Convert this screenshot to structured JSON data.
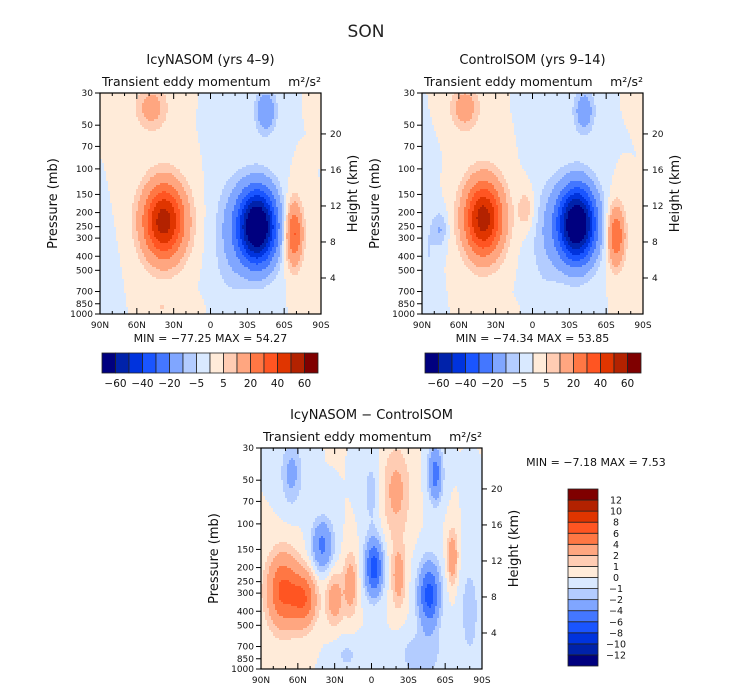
{
  "figure": {
    "title": "SON"
  },
  "chart_data": [
    {
      "type": "heatmap",
      "id": "icy",
      "title": "IcyNASOM (yrs 4–9)",
      "subtitle_left": "Transient eddy momentum",
      "subtitle_units": "m²/s²",
      "xlabel": "",
      "ylabel": "Pressure (mb)",
      "ylabel_right": "Height (km)",
      "x_ticks": [
        "90N",
        "60N",
        "30N",
        "0",
        "30S",
        "60S",
        "90S"
      ],
      "x_tick_values": [
        90,
        60,
        30,
        0,
        -30,
        -60,
        -90
      ],
      "xlim": [
        90,
        -90
      ],
      "y_ticks": [
        30,
        50,
        70,
        100,
        150,
        200,
        250,
        300,
        400,
        500,
        700,
        850,
        1000
      ],
      "ylim": [
        1000,
        30
      ],
      "y_scale": "log",
      "y_right_ticks": [
        4,
        8,
        12,
        16,
        20
      ],
      "stats": "MIN =  −77.25   MAX =   54.27",
      "min": -77.25,
      "max": 54.27,
      "colorbar": {
        "orientation": "horizontal",
        "levels": [
          -70,
          -60,
          -50,
          -40,
          -30,
          -20,
          -10,
          -5,
          0,
          5,
          10,
          20,
          30,
          40,
          50,
          60,
          70
        ],
        "labels": [
          "−60",
          "−40",
          "−20",
          "−5",
          "5",
          "20",
          "40",
          "60"
        ],
        "label_values": [
          -60,
          -40,
          -20,
          -5,
          5,
          20,
          40,
          60
        ]
      },
      "features": [
        {
          "lat": 38,
          "p": 230,
          "amp": 56,
          "wlat": 12,
          "wlogp": 0.42
        },
        {
          "lat": 48,
          "p": 38,
          "amp": 14,
          "wlat": 9,
          "wlogp": 0.25
        },
        {
          "lat": 40,
          "p": 900,
          "amp": 5,
          "wlat": 6,
          "wlogp": 0.12
        },
        {
          "lat": 15,
          "p": 900,
          "amp": 4,
          "wlat": 5,
          "wlogp": 0.1
        },
        {
          "lat": -38,
          "p": 250,
          "amp": -80,
          "wlat": 11,
          "wlogp": 0.42
        },
        {
          "lat": -45,
          "p": 40,
          "amp": -18,
          "wlat": 6,
          "wlogp": 0.25
        },
        {
          "lat": -15,
          "p": 300,
          "amp": -8,
          "wlat": 10,
          "wlogp": 0.7
        },
        {
          "lat": -68,
          "p": 280,
          "amp": 32,
          "wlat": 5,
          "wlogp": 0.35
        },
        {
          "lat": 85,
          "p": 700,
          "amp": -5,
          "wlat": 5,
          "wlogp": 0.5
        }
      ]
    },
    {
      "type": "heatmap",
      "id": "control",
      "title": "ControlSOM (yrs 9–14)",
      "subtitle_left": "Transient eddy momentum",
      "subtitle_units": "m²/s²",
      "xlabel": "",
      "ylabel": "Pressure (mb)",
      "ylabel_right": "Height (km)",
      "x_ticks": [
        "90N",
        "60N",
        "30N",
        "0",
        "30S",
        "60S",
        "90S"
      ],
      "x_tick_values": [
        90,
        60,
        30,
        0,
        -30,
        -60,
        -90
      ],
      "xlim": [
        90,
        -90
      ],
      "y_ticks": [
        30,
        50,
        70,
        100,
        150,
        200,
        250,
        300,
        400,
        500,
        700,
        850,
        1000
      ],
      "ylim": [
        1000,
        30
      ],
      "y_scale": "log",
      "y_right_ticks": [
        4,
        8,
        12,
        16,
        20
      ],
      "stats": "MIN =  −74.34   MAX =   53.85",
      "min": -74.34,
      "max": 53.85,
      "colorbar": {
        "orientation": "horizontal",
        "levels": [
          -70,
          -60,
          -50,
          -40,
          -30,
          -20,
          -10,
          -5,
          0,
          5,
          10,
          20,
          30,
          40,
          50,
          60,
          70
        ],
        "labels": [
          "−60",
          "−40",
          "−20",
          "−5",
          "5",
          "20",
          "40",
          "60"
        ],
        "label_values": [
          -60,
          -40,
          -20,
          -5,
          5,
          20,
          40,
          60
        ]
      },
      "features": [
        {
          "lat": 40,
          "p": 220,
          "amp": 56,
          "wlat": 11,
          "wlogp": 0.42
        },
        {
          "lat": 55,
          "p": 38,
          "amp": 15,
          "wlat": 8,
          "wlogp": 0.25
        },
        {
          "lat": 5,
          "p": 190,
          "amp": 9,
          "wlat": 5,
          "wlogp": 0.25
        },
        {
          "lat": 20,
          "p": 930,
          "amp": 5,
          "wlat": 4,
          "wlogp": 0.08
        },
        {
          "lat": -36,
          "p": 240,
          "amp": -78,
          "wlat": 11,
          "wlogp": 0.42
        },
        {
          "lat": -42,
          "p": 40,
          "amp": -16,
          "wlat": 6,
          "wlogp": 0.25
        },
        {
          "lat": -10,
          "p": 300,
          "amp": -7,
          "wlat": 10,
          "wlogp": 0.7
        },
        {
          "lat": -68,
          "p": 290,
          "amp": 30,
          "wlat": 5,
          "wlogp": 0.33
        },
        {
          "lat": 75,
          "p": 260,
          "amp": -10,
          "wlat": 4,
          "wlogp": 0.2
        },
        {
          "lat": 85,
          "p": 400,
          "amp": -5,
          "wlat": 5,
          "wlogp": 0.7
        }
      ]
    },
    {
      "type": "heatmap",
      "id": "diff",
      "title": "IcyNASOM − ControlSOM",
      "subtitle_left": "Transient eddy momentum",
      "subtitle_units": "m²/s²",
      "xlabel": "",
      "ylabel": "Pressure (mb)",
      "ylabel_right": "Height (km)",
      "x_ticks": [
        "90N",
        "60N",
        "30N",
        "0",
        "30S",
        "60S",
        "90S"
      ],
      "x_tick_values": [
        90,
        60,
        30,
        0,
        -30,
        -60,
        -90
      ],
      "xlim": [
        90,
        -90
      ],
      "y_ticks": [
        30,
        50,
        70,
        100,
        150,
        200,
        250,
        300,
        400,
        500,
        700,
        850,
        1000
      ],
      "ylim": [
        1000,
        30
      ],
      "y_scale": "log",
      "y_right_ticks": [
        4,
        8,
        12,
        16,
        20
      ],
      "stats": "MIN =   −7.18   MAX =    7.53",
      "min": -7.18,
      "max": 7.53,
      "colorbar": {
        "orientation": "vertical",
        "levels": [
          -14,
          -12,
          -10,
          -8,
          -6,
          -4,
          -2,
          -1,
          0,
          1,
          2,
          4,
          6,
          8,
          10,
          12,
          14
        ],
        "labels": [
          "−12",
          "−10",
          "−8",
          "−6",
          "−4",
          "−2",
          "−1",
          "0",
          "1",
          "2",
          "4",
          "6",
          "8",
          "10",
          "12"
        ],
        "label_values": [
          -12,
          -10,
          -8,
          -6,
          -4,
          -2,
          -1,
          0,
          1,
          2,
          4,
          6,
          8,
          10,
          12
        ]
      },
      "features": [
        {
          "lat": 72,
          "p": 290,
          "amp": 6.5,
          "wlat": 9,
          "wlogp": 0.4
        },
        {
          "lat": 55,
          "p": 330,
          "amp": 5.5,
          "wlat": 7,
          "wlogp": 0.3
        },
        {
          "lat": 30,
          "p": 330,
          "amp": 3,
          "wlat": 5,
          "wlogp": 0.3
        },
        {
          "lat": 17,
          "p": 260,
          "amp": 3,
          "wlat": 4,
          "wlogp": 0.35
        },
        {
          "lat": 40,
          "p": 140,
          "amp": -4.5,
          "wlat": 6,
          "wlogp": 0.28
        },
        {
          "lat": 65,
          "p": 45,
          "amp": -2.5,
          "wlat": 6,
          "wlogp": 0.35
        },
        {
          "lat": -2,
          "p": 200,
          "amp": -7.2,
          "wlat": 5,
          "wlogp": 0.3
        },
        {
          "lat": 0,
          "p": 60,
          "amp": -1.5,
          "wlat": 5,
          "wlogp": 0.4
        },
        {
          "lat": -22,
          "p": 230,
          "amp": 3,
          "wlat": 4,
          "wlogp": 0.35
        },
        {
          "lat": -20,
          "p": 60,
          "amp": 2.5,
          "wlat": 8,
          "wlogp": 0.5
        },
        {
          "lat": -47,
          "p": 310,
          "amp": -7,
          "wlat": 6,
          "wlogp": 0.35
        },
        {
          "lat": -52,
          "p": 45,
          "amp": -5,
          "wlat": 4,
          "wlogp": 0.3
        },
        {
          "lat": -66,
          "p": 170,
          "amp": 3.5,
          "wlat": 3,
          "wlogp": 0.3
        },
        {
          "lat": -40,
          "p": 800,
          "amp": -1.8,
          "wlat": 12,
          "wlogp": 0.25
        },
        {
          "lat": 20,
          "p": 800,
          "amp": -1.2,
          "wlat": 8,
          "wlogp": 0.2
        },
        {
          "lat": -80,
          "p": 400,
          "amp": -1.5,
          "wlat": 6,
          "wlogp": 0.6
        }
      ]
    }
  ],
  "colors": {
    "palette": [
      "#00007f",
      "#0022aa",
      "#0033dd",
      "#1a55ff",
      "#4477ff",
      "#80a6ff",
      "#b3ccff",
      "#d9e9ff",
      "#ffebd9",
      "#ffccb3",
      "#ffa680",
      "#ff7744",
      "#ff5522",
      "#e03500",
      "#b32200",
      "#7f0000"
    ],
    "axis": "#000000",
    "text": "#000000"
  }
}
